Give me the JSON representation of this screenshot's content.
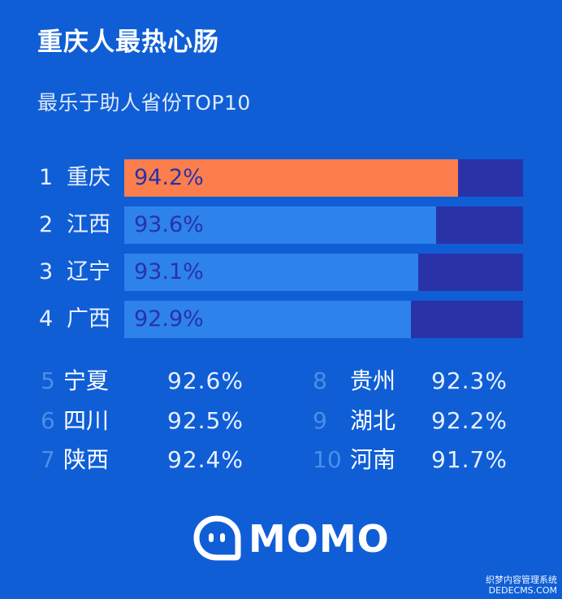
{
  "header": {
    "title": "重庆人最热心肠",
    "subtitle": "最乐于助人省份TOP10"
  },
  "chart_data": {
    "type": "bar",
    "orientation": "horizontal",
    "title": "重庆人最热心肠",
    "subtitle": "最乐于助人省份TOP10",
    "categories": [
      "重庆",
      "江西",
      "辽宁",
      "广西",
      "宁夏",
      "四川",
      "陕西",
      "贵州",
      "湖北",
      "河南"
    ],
    "values": [
      94.2,
      93.6,
      93.1,
      92.9,
      92.6,
      92.5,
      92.4,
      92.3,
      92.2,
      91.7
    ],
    "ranks": [
      "1",
      "2",
      "3",
      "4",
      "5",
      "6",
      "7",
      "8",
      "9",
      "10"
    ],
    "labels": [
      "94.2%",
      "93.6%",
      "93.1%",
      "92.9%",
      "92.6%",
      "92.5%",
      "92.4%",
      "92.3%",
      "92.2%",
      "91.7%"
    ],
    "unit": "%",
    "colors": {
      "highlight": "#fc7e4d",
      "bar": "#2d82ec",
      "track": "#2a32a8",
      "background": "#0f5ed6"
    }
  },
  "brand": {
    "logo_text": "MOMO",
    "icon": "momo-chat-bubble-icon"
  },
  "watermark": {
    "line1": "织梦内容管理系统",
    "line2": "DEDECMS.COM"
  }
}
